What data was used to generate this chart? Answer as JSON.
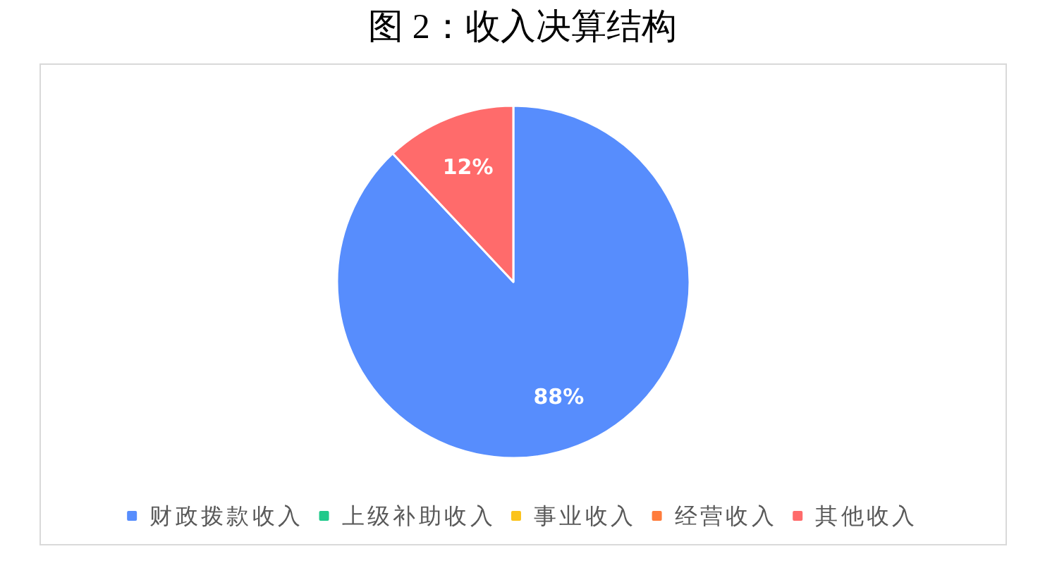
{
  "chart_data": {
    "type": "pie",
    "title": "图 2：收入决算结构",
    "categories": [
      "财政拨款收入",
      "上级补助收入",
      "事业收入",
      "经营收入",
      "其他收入"
    ],
    "values": [
      88,
      0,
      0,
      0,
      12
    ],
    "colors": [
      "#578dfd",
      "#1fc98a",
      "#fbc31c",
      "#ff7c3c",
      "#ff6b6b"
    ],
    "value_labels": [
      "88%",
      null,
      null,
      null,
      "12%"
    ],
    "legend": "bottom"
  }
}
